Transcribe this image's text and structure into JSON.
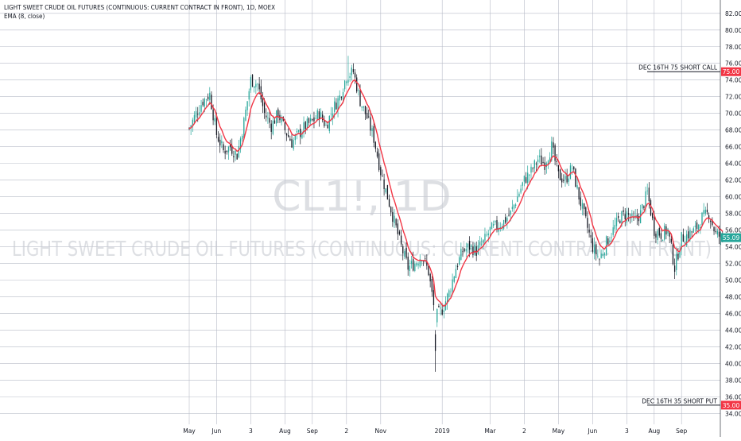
{
  "header": {
    "title": "LIGHT SWEET CRUDE OIL FUTURES (CONTINUOUS: CURRENT CONTRACT IN FRONT), 1D, MOEX",
    "indicator": "EMA (8, close)"
  },
  "watermark": {
    "symbol": "CL1!, 1D",
    "description": "LIGHT SWEET CRUDE OIL FUTURES (CONTINUOUS: CURRENT CONTRACT IN FRONT)"
  },
  "colors": {
    "up": "#26a69a",
    "down": "#131722",
    "ema": "#f23645",
    "grid": "#b8bcc8",
    "background": "#ffffff",
    "price_tag": "#26a69a",
    "level_tag": "#f23645"
  },
  "chart_data": {
    "type": "candlestick",
    "y_axis": {
      "ticks": [
        "82.00",
        "80.00",
        "78.00",
        "76.00",
        "74.00",
        "72.00",
        "70.00",
        "68.00",
        "66.00",
        "64.00",
        "62.00",
        "60.00",
        "58.00",
        "56.00",
        "54.00",
        "52.00",
        "50.00",
        "48.00",
        "46.00",
        "44.00",
        "42.00",
        "40.00",
        "38.00",
        "36.00",
        "34.00"
      ],
      "ylim": [
        32.7,
        83.6
      ]
    },
    "x_axis": {
      "labels": [
        "May",
        "Jun",
        "3",
        "Aug",
        "Sep",
        "2",
        "Nov",
        "2019",
        "Mar",
        "2",
        "May",
        "Jun",
        "3",
        "Aug",
        "Sep"
      ],
      "label_index": [
        0,
        4,
        9,
        14,
        18,
        23,
        28,
        37,
        44,
        49,
        54,
        59,
        64,
        68,
        72
      ]
    },
    "close_path": [
      [
        0,
        68.2
      ],
      [
        1,
        70.0
      ],
      [
        2,
        71.5
      ],
      [
        3,
        72.3
      ],
      [
        4,
        67.5
      ],
      [
        5,
        65.5
      ],
      [
        6,
        66.0
      ],
      [
        7,
        65.0
      ],
      [
        8,
        69.0
      ],
      [
        9,
        74.0
      ],
      [
        10,
        73.5
      ],
      [
        11,
        70.0
      ],
      [
        12,
        68.5
      ],
      [
        13,
        70.0
      ],
      [
        14,
        68.0
      ],
      [
        15,
        66.5
      ],
      [
        16,
        67.5
      ],
      [
        17,
        68.5
      ],
      [
        18,
        69.0
      ],
      [
        19,
        70.0
      ],
      [
        20,
        68.5
      ],
      [
        21,
        70.5
      ],
      [
        22,
        72.0
      ],
      [
        23,
        74.5
      ],
      [
        24,
        75.0
      ],
      [
        25,
        71.5
      ],
      [
        26,
        69.5
      ],
      [
        27,
        67.0
      ],
      [
        28,
        63.0
      ],
      [
        29,
        60.0
      ],
      [
        30,
        57.0
      ],
      [
        31,
        54.0
      ],
      [
        32,
        51.5
      ],
      [
        33,
        52.0
      ],
      [
        34,
        53.0
      ],
      [
        35,
        51.0
      ],
      [
        36,
        45.5
      ],
      [
        37,
        46.5
      ],
      [
        38,
        48.5
      ],
      [
        39,
        51.5
      ],
      [
        40,
        53.5
      ],
      [
        41,
        54.0
      ],
      [
        42,
        53.5
      ],
      [
        43,
        54.5
      ],
      [
        44,
        56.0
      ],
      [
        45,
        56.5
      ],
      [
        46,
        57.0
      ],
      [
        47,
        58.0
      ],
      [
        48,
        60.0
      ],
      [
        49,
        62.0
      ],
      [
        50,
        63.0
      ],
      [
        51,
        64.5
      ],
      [
        52,
        64.0
      ],
      [
        53,
        66.0
      ],
      [
        54,
        62.5
      ],
      [
        55,
        62.0
      ],
      [
        56,
        63.5
      ],
      [
        57,
        60.0
      ],
      [
        58,
        57.0
      ],
      [
        59,
        54.0
      ],
      [
        60,
        52.5
      ],
      [
        61,
        54.5
      ],
      [
        62,
        56.0
      ],
      [
        63,
        57.5
      ],
      [
        64,
        58.0
      ],
      [
        65,
        57.0
      ],
      [
        66,
        58.0
      ],
      [
        67,
        60.5
      ],
      [
        68,
        56.0
      ],
      [
        69,
        55.5
      ],
      [
        70,
        56.0
      ],
      [
        71,
        51.5
      ],
      [
        72,
        55.0
      ],
      [
        73,
        55.5
      ],
      [
        74,
        56.0
      ],
      [
        75,
        57.5
      ],
      [
        76,
        58.0
      ],
      [
        77,
        55.5
      ],
      [
        78,
        55.09
      ]
    ],
    "ema_label": "EMA (8, close)",
    "last_price": "55.09",
    "levels": [
      {
        "label": "DEC 16TH 75 SHORT CALL",
        "price": 75.0,
        "tag": "75.00"
      },
      {
        "label": "DEC 16TH 35 SHORT PUT",
        "price": 35.0,
        "tag": "35.00"
      }
    ]
  }
}
